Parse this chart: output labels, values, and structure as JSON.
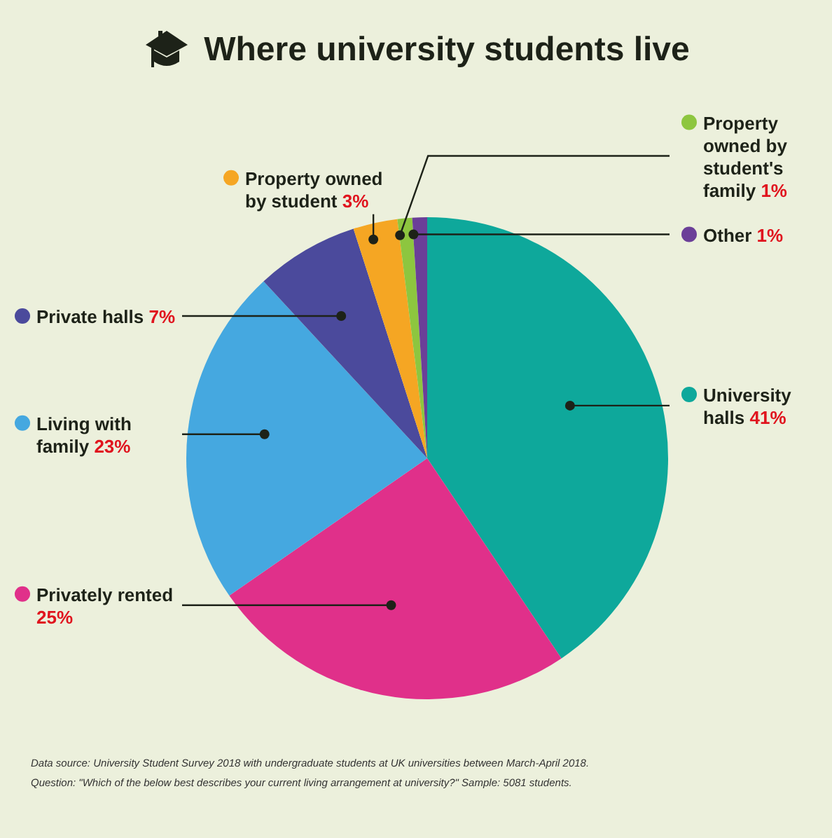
{
  "chart_data": {
    "type": "pie",
    "title": "Where university students live",
    "categories": [
      "University halls",
      "Privately rented",
      "Living with family",
      "Private halls",
      "Property owned by student",
      "Property owned by student's family",
      "Other"
    ],
    "values": [
      41,
      25,
      23,
      7,
      3,
      1,
      1
    ],
    "value_labels": [
      "41%",
      "25%",
      "23%",
      "7%",
      "3%",
      "1%",
      "1%"
    ],
    "colors": [
      "#0ea89b",
      "#e0308a",
      "#45a8e0",
      "#4b4a9c",
      "#f5a623",
      "#8dc63f",
      "#6b3f98"
    ],
    "legend": "left",
    "annotations": [
      "Data source: University Student Survey 2018 with undergraduate students at UK universities between March-April 2018.",
      "Question: \"Which of the below best describes your current living arrangement at university?\" Sample: 5081 students."
    ]
  }
}
